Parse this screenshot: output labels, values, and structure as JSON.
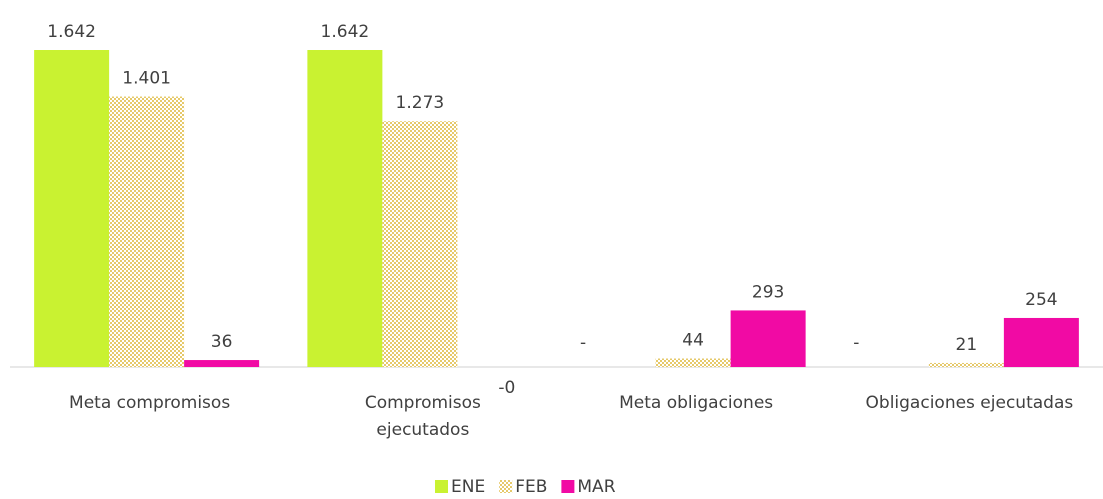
{
  "chart_data": {
    "type": "bar",
    "categories": [
      "Meta compromisos",
      "Compromisos ejecutados",
      "Meta obligaciones",
      "Obligaciones ejecutadas"
    ],
    "series": [
      {
        "name": "ENE",
        "color": "#c9f231",
        "values": [
          1642,
          1642,
          0,
          0
        ],
        "value_labels": [
          "1.642",
          "1.642",
          "-",
          "-"
        ]
      },
      {
        "name": "FEB",
        "color": "#e6c96a",
        "pattern": "dotted",
        "values": [
          1401,
          1273,
          44,
          21
        ],
        "value_labels": [
          "1.401",
          "1.273",
          "44",
          "21"
        ]
      },
      {
        "name": "MAR",
        "color": "#f10aa4",
        "values": [
          36,
          0,
          293,
          254
        ],
        "value_labels": [
          "36",
          "-0",
          "293",
          "254"
        ]
      }
    ],
    "legend": "bottom"
  }
}
